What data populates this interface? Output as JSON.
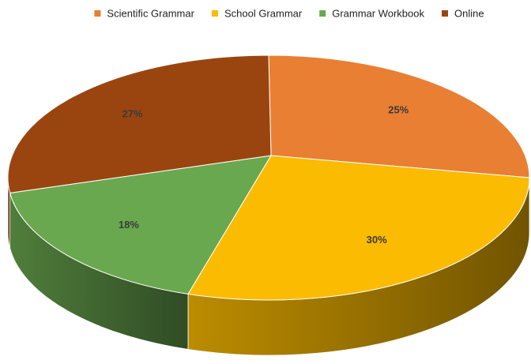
{
  "chart_data": {
    "type": "pie",
    "categories": [
      "Scientific Grammar",
      "School Grammar",
      "Grammar Workbook",
      "Online"
    ],
    "values": [
      25,
      30,
      18,
      27
    ],
    "value_labels": [
      "25%",
      "30%",
      "18%",
      "27%"
    ],
    "colors": [
      "#e97f33",
      "#fbbb00",
      "#6aa84f",
      "#9a4510"
    ],
    "legend": "top"
  }
}
